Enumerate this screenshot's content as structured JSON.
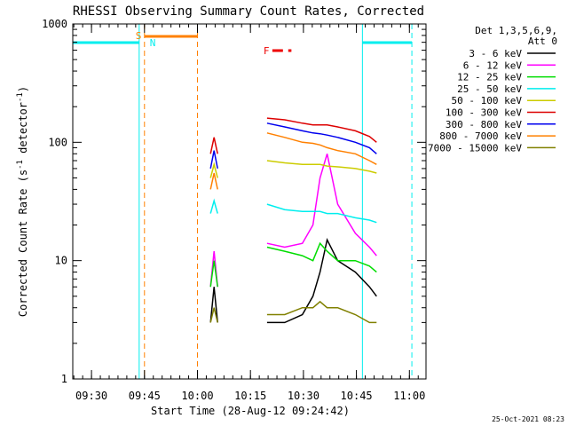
{
  "chart_data": {
    "type": "line",
    "title": "RHESSI Observing Summary Count Rates, Corrected",
    "xlabel": "Start Time (28-Aug-12 09:24:42)",
    "ylabel": "Corrected Count Rate (s⁻¹ detector⁻¹)",
    "ylabel_main": "Corrected Count Rate (s",
    "ylabel_sup1": "-1",
    "ylabel_mid": " detector",
    "ylabel_sup2": "-1",
    "ylabel_end": ")",
    "x_ticks": [
      "09:30",
      "09:45",
      "10:00",
      "10:15",
      "10:30",
      "10:45",
      "11:00"
    ],
    "x_tick_minutes": [
      5.3,
      20.3,
      35.3,
      50.3,
      65.3,
      80.3,
      95.3
    ],
    "xlim_minutes": [
      0,
      100
    ],
    "y_ticks": [
      "1",
      "10",
      "100",
      "1000"
    ],
    "y_tick_values": [
      1,
      10,
      100,
      1000
    ],
    "y_scale": "log",
    "ylim": [
      1,
      1000
    ],
    "legend_header": [
      "Det 1,3,5,6,9,",
      "Att 0"
    ],
    "legend_placement": "right",
    "series": [
      {
        "name": "3 - 6 keV",
        "color": "#000000"
      },
      {
        "name": "6 - 12 keV",
        "color": "#ff00ff"
      },
      {
        "name": "12 - 25 keV",
        "color": "#00dd00"
      },
      {
        "name": "25 - 50 keV",
        "color": "#00eeee"
      },
      {
        "name": "50 - 100 keV",
        "color": "#cccc00"
      },
      {
        "name": "100 - 300 keV",
        "color": "#dd0000"
      },
      {
        "name": "300 - 800 keV",
        "color": "#0000ee"
      },
      {
        "name": "800 - 7000 keV",
        "color": "#ff8000"
      },
      {
        "name": "7000 - 15000 keV",
        "color": "#808000"
      }
    ],
    "series_approx_values": {
      "sample_minutes": [
        39,
        40,
        41,
        55,
        60,
        65,
        68,
        70,
        72,
        75,
        80,
        84,
        86
      ],
      "3 - 6 keV": [
        3,
        6,
        3,
        3,
        3,
        3.5,
        5,
        8,
        15,
        10,
        8,
        6,
        5
      ],
      "6 - 12 keV": [
        6,
        12,
        6,
        14,
        13,
        14,
        20,
        50,
        80,
        30,
        17,
        13,
        11
      ],
      "12 - 25 keV": [
        6,
        10,
        6,
        13,
        12,
        11,
        10,
        14,
        12,
        10,
        10,
        9,
        8
      ],
      "25 - 50 keV": [
        25,
        32,
        25,
        30,
        27,
        26,
        26,
        26,
        25,
        25,
        23,
        22,
        21
      ],
      "50 - 100 keV": [
        50,
        65,
        50,
        70,
        67,
        65,
        65,
        65,
        63,
        62,
        60,
        57,
        55
      ],
      "100 - 300 keV": [
        80,
        110,
        80,
        160,
        155,
        145,
        140,
        140,
        140,
        135,
        125,
        112,
        100
      ],
      "300 - 800 keV": [
        60,
        85,
        60,
        145,
        135,
        125,
        120,
        118,
        115,
        110,
        100,
        90,
        80
      ],
      "800 - 7000 keV": [
        40,
        55,
        40,
        120,
        110,
        100,
        98,
        95,
        90,
        85,
        80,
        70,
        65
      ],
      "7000 - 15000 keV": [
        3,
        4,
        3,
        3.5,
        3.5,
        4,
        4,
        4.5,
        4,
        4,
        3.5,
        3,
        3
      ]
    },
    "annotations": {
      "saa_label": "S",
      "night_label": "N",
      "flare_label": "F",
      "saa_interval_minutes": [
        20.3,
        35.3
      ],
      "night_intervals_minutes": [
        [
          0,
          18.8
        ],
        [
          82,
          96
        ]
      ],
      "flare_segments_minutes": [
        [
          56.5,
          59.5
        ],
        [
          61.0,
          61.9
        ]
      ],
      "vertical_markers_minutes": [
        18.8,
        20.3,
        35.3,
        82,
        96
      ]
    },
    "flag_colors": {
      "saa": "#ff8000",
      "night": "#00eeee",
      "flare": "#ee0000"
    }
  },
  "footer_timestamp": "25-Oct-2021 08:23"
}
